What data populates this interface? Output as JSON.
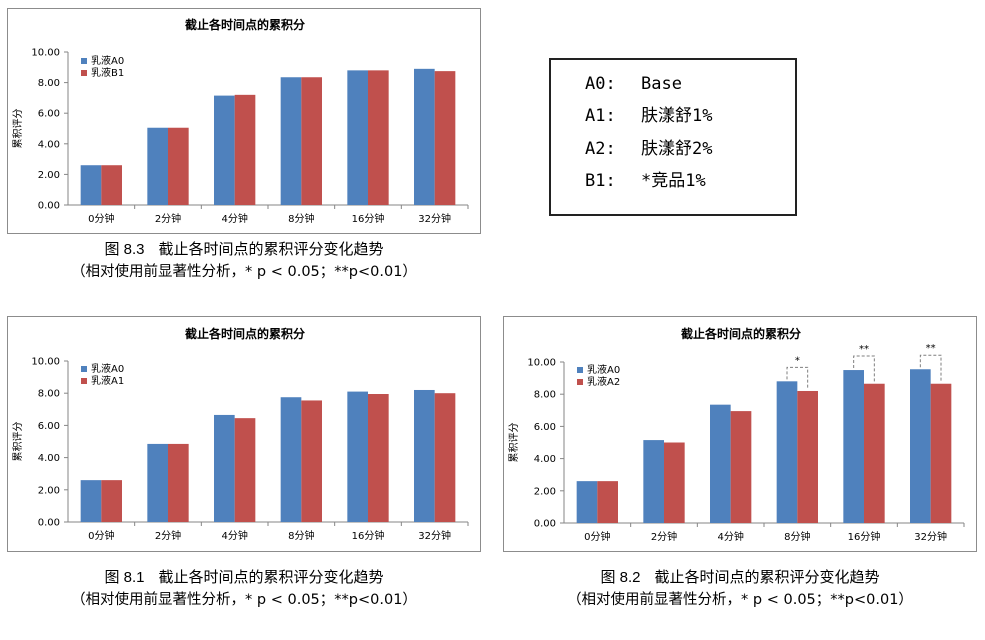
{
  "chart_data": [
    {
      "id": "c83",
      "type": "bar",
      "title": "截止各时间点的累积分",
      "ylabel": "累积评分",
      "xlabel": "",
      "ylim": [
        0,
        10
      ],
      "yticks": [
        "0.00",
        "2.00",
        "4.00",
        "6.00",
        "8.00",
        "10.00"
      ],
      "categories": [
        "0分钟",
        "2分钟",
        "4分钟",
        "8分钟",
        "16分钟",
        "32分钟"
      ],
      "series": [
        {
          "name": "乳液A0",
          "color": "#4f81bd",
          "values": [
            2.6,
            5.05,
            7.15,
            8.35,
            8.8,
            8.9
          ]
        },
        {
          "name": "乳液B1",
          "color": "#c0504d",
          "values": [
            2.6,
            5.05,
            7.2,
            8.35,
            8.8,
            8.75
          ]
        }
      ],
      "legend": "top-left",
      "grid": false,
      "significance": []
    },
    {
      "id": "c81",
      "type": "bar",
      "title": "截止各时间点的累积分",
      "ylabel": "累积评分",
      "xlabel": "",
      "ylim": [
        0,
        10
      ],
      "yticks": [
        "0.00",
        "2.00",
        "4.00",
        "6.00",
        "8.00",
        "10.00"
      ],
      "categories": [
        "0分钟",
        "2分钟",
        "4分钟",
        "8分钟",
        "16分钟",
        "32分钟"
      ],
      "series": [
        {
          "name": "乳液A0",
          "color": "#4f81bd",
          "values": [
            2.6,
            4.85,
            6.65,
            7.75,
            8.1,
            8.2
          ]
        },
        {
          "name": "乳液A1",
          "color": "#c0504d",
          "values": [
            2.6,
            4.85,
            6.45,
            7.55,
            7.95,
            8.0
          ]
        }
      ],
      "legend": "top-left",
      "grid": false,
      "significance": []
    },
    {
      "id": "c82",
      "type": "bar",
      "title": "截止各时间点的累积分",
      "ylabel": "累积评分",
      "xlabel": "",
      "ylim": [
        0,
        10
      ],
      "yticks": [
        "0.00",
        "2.00",
        "4.00",
        "6.00",
        "8.00",
        "10.00"
      ],
      "categories": [
        "0分钟",
        "2分钟",
        "4分钟",
        "8分钟",
        "16分钟",
        "32分钟"
      ],
      "series": [
        {
          "name": "乳液A0",
          "color": "#4f81bd",
          "values": [
            2.6,
            5.15,
            7.35,
            8.8,
            9.5,
            9.55
          ]
        },
        {
          "name": "乳液A2",
          "color": "#c0504d",
          "values": [
            2.6,
            5.0,
            6.95,
            8.2,
            8.65,
            8.65
          ]
        }
      ],
      "legend": "top-left",
      "grid": false,
      "significance": [
        {
          "category_index": 3,
          "label": "*"
        },
        {
          "category_index": 4,
          "label": "**"
        },
        {
          "category_index": 5,
          "label": "**"
        }
      ]
    }
  ],
  "captions": {
    "fig83": {
      "number": "图 8.3",
      "title": "截止各时间点的累积评分变化趋势",
      "note": "（相对使用前显著性分析，* p < 0.05；**p<0.01）"
    },
    "fig81": {
      "number": "图 8.1",
      "title": "截止各时间点的累积评分变化趋势",
      "note": "（相对使用前显著性分析，* p < 0.05；**p<0.01）"
    },
    "fig82": {
      "number": "图 8.2",
      "title": "截止各时间点的累积评分变化趋势",
      "note": "（相对使用前显著性分析，* p < 0.05；**p<0.01）"
    }
  },
  "legend_box": {
    "rows": [
      {
        "code": "A0:",
        "desc": "Base"
      },
      {
        "code": "A1:",
        "desc": "肤漾舒1%"
      },
      {
        "code": "A2:",
        "desc": "肤漾舒2%"
      },
      {
        "code": "B1:",
        "desc": "*竞品1%"
      }
    ]
  }
}
